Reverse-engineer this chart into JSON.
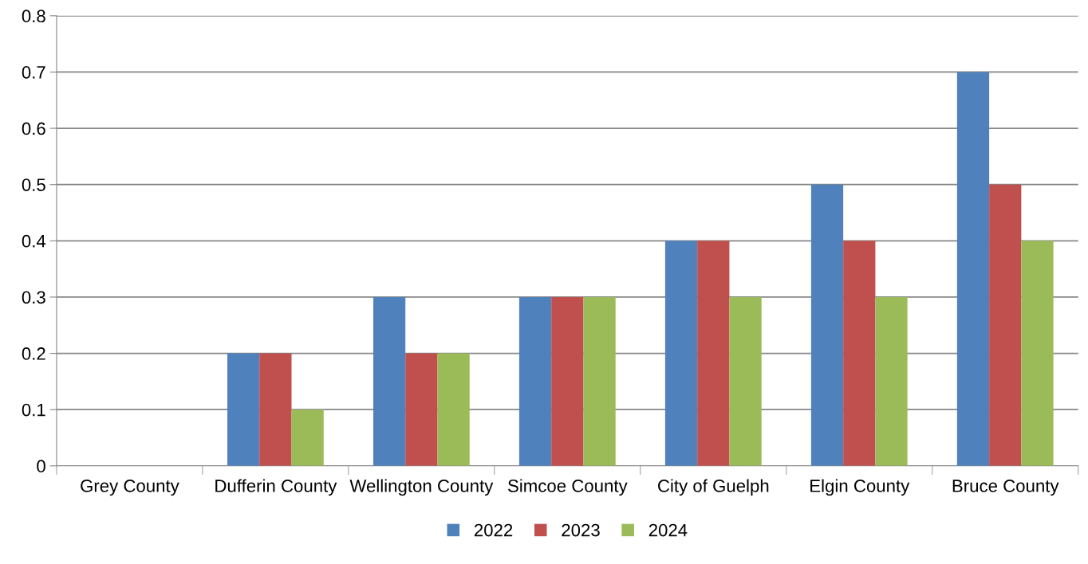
{
  "chart_data": {
    "type": "bar",
    "categories": [
      "Grey County",
      "Dufferin County",
      "Wellington County",
      "Simcoe County",
      "City of Guelph",
      "Elgin County",
      "Bruce County"
    ],
    "series": [
      {
        "name": "2022",
        "color": "#4f81bd",
        "values": [
          0,
          0.2,
          0.3,
          0.3,
          0.4,
          0.5,
          0.7
        ]
      },
      {
        "name": "2023",
        "color": "#c0504d",
        "values": [
          0,
          0.2,
          0.2,
          0.3,
          0.4,
          0.4,
          0.5
        ]
      },
      {
        "name": "2024",
        "color": "#9bbb59",
        "values": [
          0,
          0.1,
          0.2,
          0.3,
          0.3,
          0.3,
          0.4
        ]
      }
    ],
    "ylim": [
      0,
      0.8
    ],
    "yticks": [
      0,
      0.1,
      0.2,
      0.3,
      0.4,
      0.5,
      0.6,
      0.7,
      0.8
    ],
    "grid": "y",
    "legend": "bottom"
  }
}
